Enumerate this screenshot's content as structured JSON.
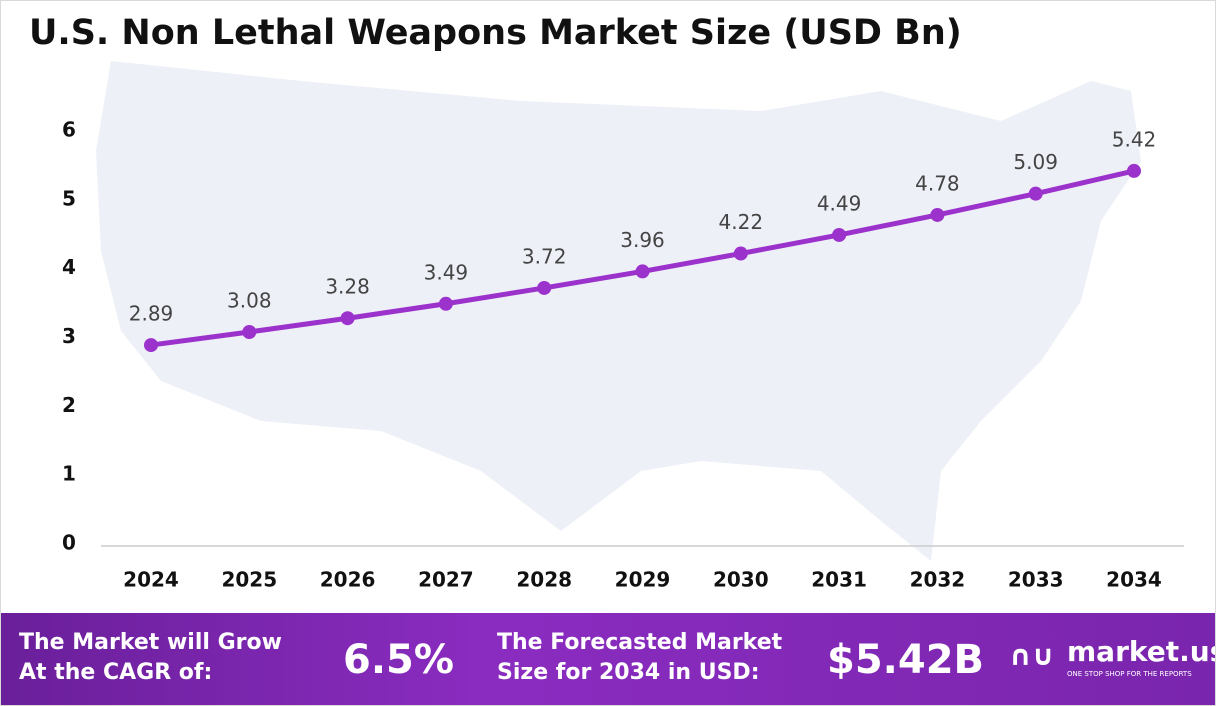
{
  "chart_data": {
    "type": "line",
    "title": "U.S. Non Lethal Weapons Market Size (USD Bn)",
    "categories": [
      "2024",
      "2025",
      "2026",
      "2027",
      "2028",
      "2029",
      "2030",
      "2031",
      "2032",
      "2033",
      "2034"
    ],
    "series": [
      {
        "name": "Market Size",
        "color": "#9c32cc",
        "values": [
          2.89,
          3.08,
          3.28,
          3.49,
          3.72,
          3.96,
          4.22,
          4.49,
          4.78,
          5.09,
          5.42
        ]
      }
    ],
    "ylim": [
      0,
      6
    ],
    "yticks": [
      0,
      1,
      2,
      3,
      4,
      5,
      6
    ],
    "grid": false
  },
  "footer": {
    "cagr_text": [
      "The Market will Grow",
      "At the CAGR of:"
    ],
    "cagr_value": "6.5%",
    "forecast_text": [
      "The Forecasted Market",
      "Size for 2034 in USD:"
    ],
    "forecast_value": "$5.42B",
    "logo": "market.us",
    "tagline": "ONE STOP SHOP FOR THE REPORTS"
  }
}
